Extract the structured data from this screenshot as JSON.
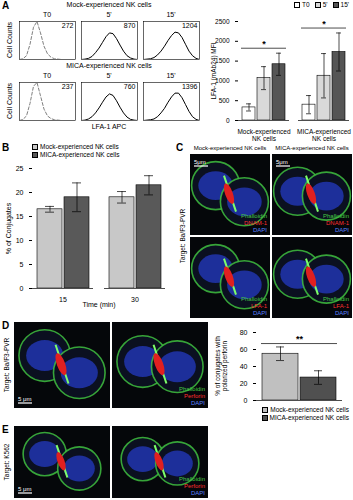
{
  "panel_labels": [
    "A",
    "B",
    "C",
    "D",
    "E"
  ],
  "chart_data": [
    {
      "type": "line",
      "subtitle": "Mock-experienced NK cells",
      "title": "T0",
      "ylabel": "Cell Counts",
      "annotations": [
        272
      ],
      "x": [
        0,
        0.25,
        0.5,
        0.75,
        1,
        1.25,
        1.5,
        1.75,
        2,
        2.25,
        2.5,
        2.75,
        3,
        3.25,
        3.5,
        3.75,
        4
      ],
      "values": [
        0,
        2,
        10,
        40,
        85,
        100,
        70,
        35,
        15,
        6,
        2,
        1,
        0,
        0,
        0,
        0,
        0
      ],
      "xlim": [
        0,
        4
      ],
      "ylim": [
        0,
        100
      ],
      "tick_labels": false,
      "color": "#808080",
      "line_style": "dashed"
    },
    {
      "type": "line",
      "title": "5'",
      "annotations": [
        870
      ],
      "x": [
        0,
        0.25,
        0.5,
        0.75,
        1,
        1.25,
        1.5,
        1.75,
        2,
        2.25,
        2.5,
        2.75,
        3,
        3.25,
        3.5,
        3.75,
        4
      ],
      "values": [
        0,
        1,
        3,
        8,
        18,
        30,
        45,
        60,
        70,
        68,
        55,
        38,
        22,
        10,
        4,
        1,
        0
      ],
      "xlim": [
        0,
        4
      ],
      "ylim": [
        0,
        100
      ],
      "tick_labels": false,
      "color": "#000000",
      "line_style": "solid"
    },
    {
      "type": "line",
      "title": "15'",
      "annotations": [
        1204
      ],
      "x": [
        0,
        0.25,
        0.5,
        0.75,
        1,
        1.25,
        1.5,
        1.75,
        2,
        2.25,
        2.5,
        2.75,
        3,
        3.25,
        3.5,
        3.75,
        4
      ],
      "values": [
        0,
        1,
        2,
        5,
        12,
        22,
        35,
        50,
        63,
        72,
        70,
        58,
        40,
        22,
        10,
        3,
        0
      ],
      "xlim": [
        0,
        4
      ],
      "ylim": [
        0,
        100
      ],
      "tick_labels": false,
      "color": "#000000",
      "line_style": "solid"
    },
    {
      "type": "line",
      "subtitle": "MICA-experienced NK cells",
      "title": "T0",
      "ylabel": "Cell Counts",
      "annotations": [
        237
      ],
      "x": [
        0,
        0.25,
        0.5,
        0.75,
        1,
        1.25,
        1.5,
        1.75,
        2,
        2.25,
        2.5,
        2.75,
        3,
        3.25,
        3.5,
        3.75,
        4
      ],
      "values": [
        0,
        3,
        12,
        45,
        90,
        100,
        65,
        30,
        12,
        5,
        2,
        1,
        0,
        0,
        0,
        0,
        0
      ],
      "xlim": [
        0,
        4
      ],
      "ylim": [
        0,
        100
      ],
      "tick_labels": false,
      "color": "#808080",
      "line_style": "dashed"
    },
    {
      "type": "line",
      "title": "5'",
      "xlabel": "LFA-1 APC",
      "annotations": [
        760
      ],
      "x": [
        0,
        0.25,
        0.5,
        0.75,
        1,
        1.25,
        1.5,
        1.75,
        2,
        2.25,
        2.5,
        2.75,
        3,
        3.25,
        3.5,
        3.75,
        4
      ],
      "values": [
        0,
        1,
        4,
        10,
        20,
        33,
        48,
        62,
        70,
        66,
        52,
        35,
        20,
        9,
        3,
        1,
        0
      ],
      "xlim": [
        0,
        4
      ],
      "ylim": [
        0,
        100
      ],
      "tick_labels": false,
      "color": "#000000",
      "line_style": "solid"
    },
    {
      "type": "line",
      "title": "15'",
      "annotations": [
        1396
      ],
      "x": [
        0,
        0.25,
        0.5,
        0.75,
        1,
        1.25,
        1.5,
        1.75,
        2,
        2.25,
        2.5,
        2.75,
        3,
        3.25,
        3.5,
        3.75,
        4
      ],
      "values": [
        0,
        1,
        2,
        4,
        10,
        20,
        32,
        48,
        62,
        72,
        72,
        60,
        42,
        24,
        10,
        3,
        0
      ],
      "xlim": [
        0,
        4
      ],
      "ylim": [
        0,
        100
      ],
      "tick_labels": false,
      "color": "#000000",
      "line_style": "solid"
    },
    {
      "type": "bar",
      "ylabel": "LFA-1 (mAb24) MFI",
      "categories": [
        "Mock-experienced NK cells",
        "MICA-experienced NK cells"
      ],
      "series": [
        {
          "name": "T0",
          "color": "#ffffff",
          "values": [
            330,
            400
          ],
          "errors": [
            90,
            230
          ]
        },
        {
          "name": "5'",
          "color": "#d9d9d9",
          "values": [
            1070,
            1130
          ],
          "errors": [
            290,
            560
          ]
        },
        {
          "name": "15'",
          "color": "#555555",
          "values": [
            1420,
            1730
          ],
          "errors": [
            280,
            480
          ]
        }
      ],
      "ylim": [
        0,
        2500
      ],
      "yticks": [
        0,
        500,
        1000,
        1500,
        2000,
        2500
      ],
      "legend": "top-right",
      "significance": [
        {
          "category": "Mock-experienced NK cells",
          "from": "T0",
          "to": "15'",
          "label": "*"
        },
        {
          "category": "MICA-experienced NK cells",
          "from": "T0",
          "to": "15'",
          "label": "*"
        }
      ]
    },
    {
      "type": "bar",
      "ylabel": "% of Conjugates",
      "xlabel": "Time (min)",
      "categories": [
        "15",
        "30"
      ],
      "series": [
        {
          "name": "Mock-experienced NK cells",
          "color": "#c8c8c8",
          "values": [
            16.5,
            19
          ],
          "errors": [
            0.6,
            1.2
          ]
        },
        {
          "name": "MICA-experienced NK cells",
          "color": "#595959",
          "values": [
            19,
            21.5
          ],
          "errors": [
            3,
            2
          ]
        }
      ],
      "ylim": [
        0,
        25
      ],
      "yticks": [
        0,
        5,
        10,
        15,
        20,
        25
      ],
      "legend": "top-left"
    },
    {
      "type": "bar",
      "ylabel": "% of conjugates with polarized perforin",
      "categories": [
        null
      ],
      "series": [
        {
          "name": "Mock-experienced NK cells",
          "color": "#c0c0c0",
          "values": [
            55
          ],
          "errors": [
            8
          ]
        },
        {
          "name": "MICA-experienced NK cells",
          "color": "#505050",
          "values": [
            27
          ],
          "errors": [
            8
          ]
        }
      ],
      "ylim": [
        0,
        80
      ],
      "yticks": [
        0,
        20,
        40,
        60,
        80
      ],
      "legend": "bottom-right",
      "tick_labels": "y",
      "significance": [
        {
          "from": "Mock-experienced NK cells",
          "to": "MICA-experienced NK cells",
          "label": "**"
        }
      ]
    }
  ],
  "micrograph_panels": [
    {
      "column_titles": [
        "Mock-experienced NK cells",
        "MICA-experienced NK cells"
      ],
      "row_label": "Target: Ba/F3-PVR",
      "images": [
        [
          {
            "scale_bar": "5μm",
            "stains": [
              "Phalloidin",
              "DNAM-1",
              "DAPI"
            ]
          },
          {
            "scale_bar": "5μm",
            "stains": [
              "Phalloidin",
              "DNAM-1",
              "DAPI"
            ]
          }
        ],
        [
          {
            "stains": [
              "Phalloidin",
              "LFA-1",
              "DAPI"
            ]
          },
          {
            "stains": [
              "Phalloidin",
              "LFA-1",
              "DAPI"
            ]
          }
        ]
      ]
    },
    {
      "row_label": "Target: Ba/F3-PVR",
      "images": [
        [
          {
            "scale_bar": "5 μm"
          },
          {
            "stains": [
              "Phalloidin",
              "Perforin",
              "DAPI"
            ]
          }
        ]
      ]
    },
    {
      "row_label": "Target: K562",
      "images": [
        [
          {
            "scale_bar": "5 μm"
          },
          {
            "stains": [
              "Phalloidin",
              "Perforin",
              "DAPI"
            ]
          }
        ]
      ]
    }
  ]
}
